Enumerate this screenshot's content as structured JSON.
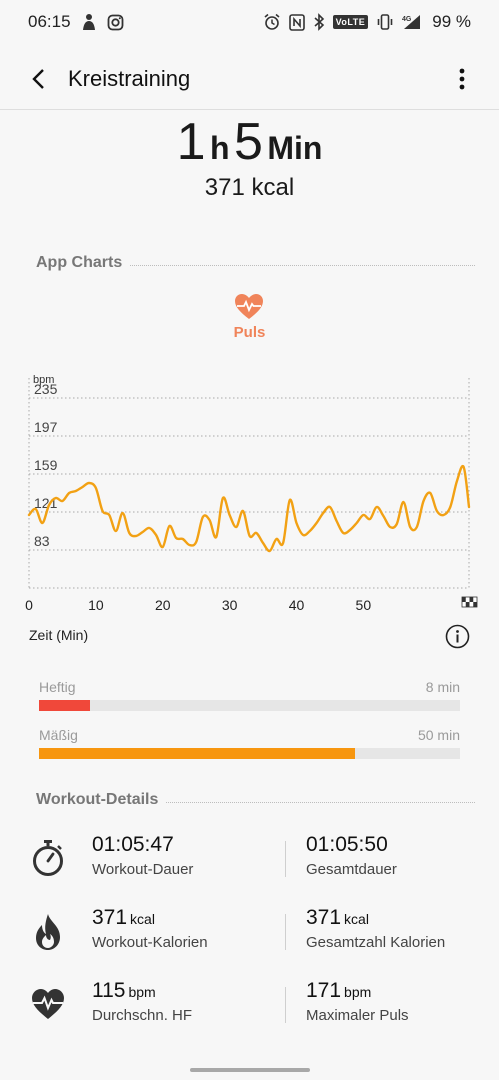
{
  "status_bar": {
    "time": "06:15",
    "battery": "99 %",
    "network": "4G",
    "volte": "VoLTE"
  },
  "app_bar": {
    "title": "Kreistraining"
  },
  "summary": {
    "hours": "1",
    "hours_unit": "h",
    "minutes": "5",
    "minutes_unit": "Min",
    "kcal": "371 kcal"
  },
  "app_charts": {
    "section_title": "App Charts",
    "metric_label": "Puls",
    "metric_color": "#f0845a",
    "x_axis_label": "Zeit (Min)"
  },
  "chart_data": {
    "type": "line",
    "ylabel": "bpm",
    "xlabel": "Zeit (Min)",
    "y_ticks": [
      235,
      197,
      159,
      121,
      83
    ],
    "x_ticks": [
      0,
      10,
      20,
      30,
      40,
      50
    ],
    "xlim": [
      0,
      65.8
    ],
    "ylim": [
      45,
      255
    ],
    "line_color": "#f2a114",
    "series": [
      {
        "x": [
          0,
          1,
          2,
          3,
          4,
          5,
          6,
          7,
          8,
          9,
          10,
          11,
          12,
          13,
          14,
          15,
          16,
          17,
          18,
          19,
          20,
          21,
          22,
          23,
          24,
          25,
          26,
          27,
          28,
          29,
          30,
          31,
          32,
          33,
          34,
          35,
          36,
          37,
          38,
          39,
          40,
          41,
          42,
          43,
          44,
          45,
          46,
          47,
          48,
          49,
          50,
          51,
          52,
          53,
          54,
          55,
          56,
          57,
          58,
          59,
          60,
          61,
          62,
          63,
          64,
          65,
          65.8
        ],
        "y": [
          118,
          124,
          110,
          128,
          135,
          132,
          140,
          142,
          146,
          150,
          145,
          122,
          118,
          102,
          120,
          100,
          97,
          101,
          105,
          98,
          86,
          107,
          95,
          94,
          88,
          91,
          116,
          113,
          96,
          135,
          118,
          106,
          122,
          97,
          100,
          90,
          82,
          94,
          90,
          133,
          110,
          98,
          102,
          110,
          120,
          126,
          112,
          100,
          103,
          110,
          118,
          114,
          126,
          117,
          106,
          109,
          131,
          106,
          106,
          132,
          140,
          122,
          118,
          126,
          152,
          166,
          126
        ]
      }
    ]
  },
  "intensity": [
    {
      "label": "Heftig",
      "value": "8 min",
      "fraction": 0.12,
      "color": "#f0483a"
    },
    {
      "label": "Mäßig",
      "value": "50 min",
      "fraction": 0.75,
      "color": "#f7960f"
    }
  ],
  "workout_details": {
    "section_title": "Workout-Details",
    "rows": [
      {
        "icon": "stopwatch-icon",
        "left": {
          "value": "01:05:47",
          "unit": "",
          "label": "Workout-Dauer"
        },
        "right": {
          "value": "01:05:50",
          "unit": "",
          "label": "Gesamtdauer"
        }
      },
      {
        "icon": "flame-icon",
        "left": {
          "value": "371",
          "unit": "kcal",
          "label": "Workout-Kalorien"
        },
        "right": {
          "value": "371",
          "unit": "kcal",
          "label": "Gesamtzahl Kalorien"
        }
      },
      {
        "icon": "heart-rate-icon",
        "left": {
          "value": "115",
          "unit": "bpm",
          "label": "Durchschn. HF"
        },
        "right": {
          "value": "171",
          "unit": "bpm",
          "label": "Maximaler Puls"
        }
      }
    ]
  }
}
